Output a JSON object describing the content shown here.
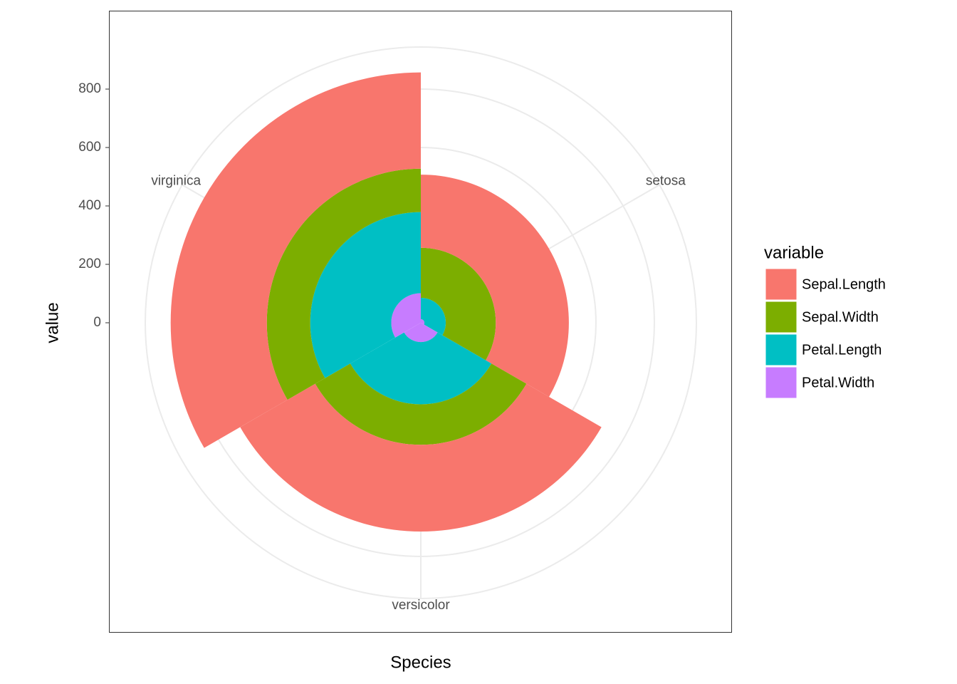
{
  "chart_data": {
    "type": "polar_stacked_bar",
    "x_label": "Species",
    "y_label": "value",
    "categories": [
      "setosa",
      "versicolor",
      "virginica"
    ],
    "series": [
      {
        "name": "Sepal.Length",
        "color": "#f8766d",
        "values": [
          250.3,
          296.8,
          329.4
        ]
      },
      {
        "name": "Sepal.Width",
        "color": "#7cae00",
        "values": [
          171.4,
          138.5,
          148.7
        ]
      },
      {
        "name": "Petal.Length",
        "color": "#00bfc4",
        "values": [
          73.1,
          213,
          277.6
        ]
      },
      {
        "name": "Petal.Width",
        "color": "#c77cff",
        "values": [
          12.3,
          66.3,
          101.3
        ]
      }
    ],
    "legend_title": "variable",
    "ylim": [
      0,
      944
    ],
    "yticks": [
      0,
      200,
      400,
      600,
      800
    ],
    "grid": true
  }
}
